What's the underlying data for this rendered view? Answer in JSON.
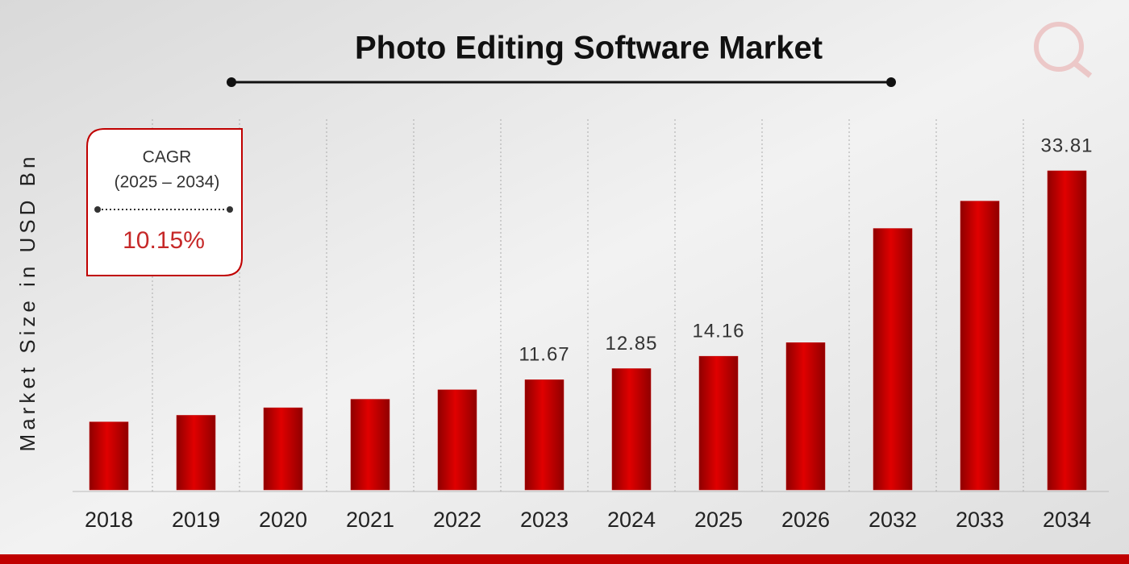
{
  "chart_data": {
    "type": "bar",
    "title": "Photo Editing Software Market",
    "y_label": "Market Size in USD Bn",
    "categories": [
      "2018",
      "2019",
      "2020",
      "2021",
      "2022",
      "2023",
      "2024",
      "2025",
      "2026",
      "2032",
      "2033",
      "2034"
    ],
    "values": [
      7.2,
      7.9,
      8.7,
      9.6,
      10.6,
      11.67,
      12.85,
      14.16,
      15.6,
      27.7,
      30.6,
      33.81
    ],
    "value_labels": [
      null,
      null,
      null,
      null,
      null,
      "11.67",
      "12.85",
      "14.16",
      null,
      null,
      null,
      "33.81"
    ],
    "color": "#c00000",
    "cagr": {
      "title": "CAGR",
      "period": "(2025 – 2034)",
      "value": "10.15%"
    }
  }
}
